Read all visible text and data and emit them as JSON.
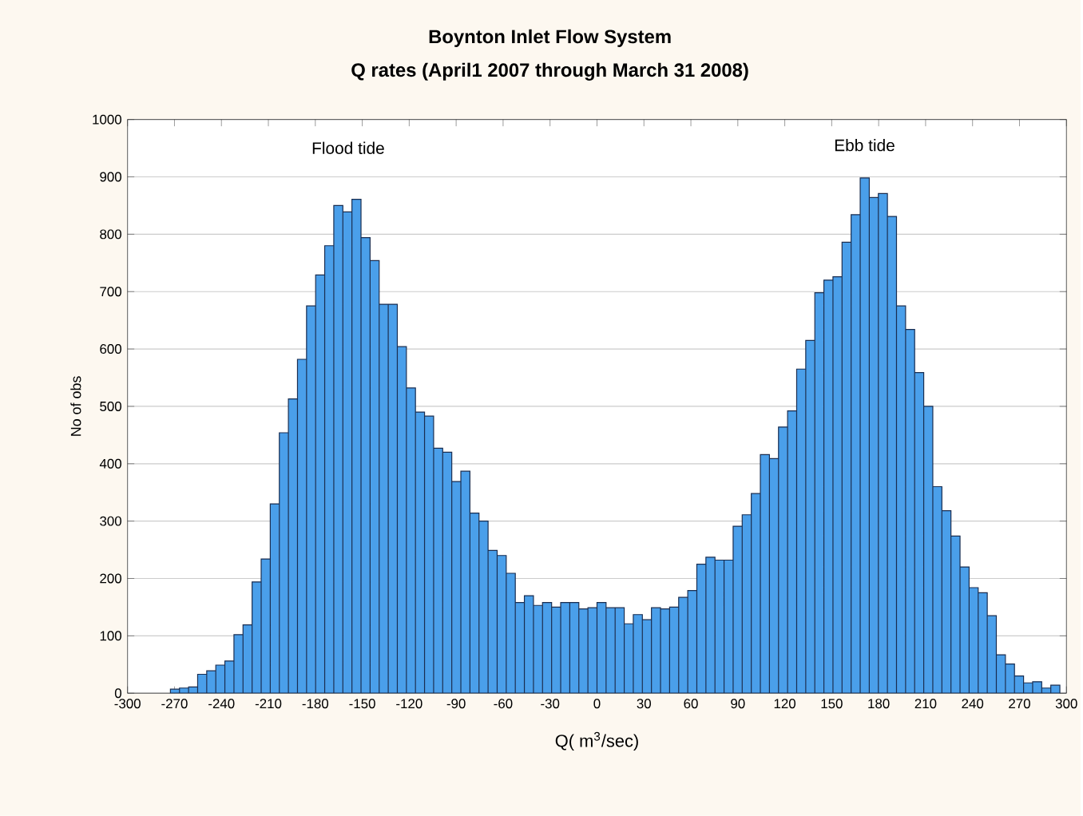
{
  "chart_data": {
    "type": "histogram",
    "title": "Boynton Inlet Flow System",
    "subtitle": "Q rates  (April1 2007 through March 31 2008)",
    "xlabel": "Q( m$^{3}$/sec)",
    "ylabel": "No of obs",
    "color": "#4a9fea",
    "bins": [
      -272.6,
      -266.8,
      -261.0,
      -255.2,
      -249.4,
      -243.6,
      -237.8,
      -232.0,
      -226.2,
      -220.4,
      -214.6,
      -208.8,
      -203.0,
      -197.2,
      -191.4,
      -185.6,
      -179.8,
      -174.0,
      -168.2,
      -162.4,
      -156.6,
      -150.8,
      -145.0,
      -139.2,
      -133.4,
      -127.6,
      -121.8,
      -116.0,
      -110.2,
      -104.4,
      -98.6,
      -92.8,
      -87.0,
      -81.2,
      -75.4,
      -69.6,
      -63.8,
      -58.0,
      -52.2,
      -46.4,
      -40.6,
      -34.8,
      -29.0,
      -23.2,
      -17.4,
      -11.6,
      -5.8,
      0,
      5.8,
      11.6,
      17.4,
      23.2,
      29.0,
      34.8,
      40.6,
      46.4,
      52.2,
      58.0,
      63.8,
      69.6,
      75.4,
      81.2,
      87.0,
      92.8,
      98.6,
      104.4,
      110.2,
      116.0,
      121.8,
      127.6,
      133.4,
      139.2,
      145.0,
      150.8,
      156.6,
      162.4,
      168.2,
      174.0,
      179.8,
      185.6,
      191.4,
      197.2,
      203.0,
      208.8,
      214.6,
      220.4,
      226.2,
      232.0,
      237.8,
      243.6,
      249.4,
      255.2,
      261.0,
      266.8,
      272.6,
      278.4,
      284.2,
      290.0,
      295.8
    ],
    "values": [
      7,
      9,
      11,
      33,
      39,
      49,
      56,
      102,
      119,
      194,
      234,
      330,
      454,
      513,
      582,
      675,
      729,
      780,
      850,
      839,
      861,
      794,
      754,
      678,
      678,
      604,
      532,
      490,
      483,
      427,
      420,
      369,
      387,
      314,
      300,
      249,
      240,
      209,
      158,
      170,
      153,
      158,
      150,
      158,
      158,
      147,
      149,
      158,
      149,
      149,
      121,
      137,
      128,
      149,
      147,
      150,
      167,
      179,
      225,
      237,
      232,
      232,
      291,
      311,
      348,
      416,
      409,
      464,
      492,
      565,
      615,
      698,
      720,
      726,
      786,
      834,
      898,
      864,
      871,
      831,
      675,
      634,
      559,
      500,
      360,
      318,
      274,
      220,
      184,
      175,
      135,
      67,
      51,
      30,
      18,
      20,
      9,
      14
    ],
    "xlim": [
      -300,
      300
    ],
    "ylim": [
      0,
      1000
    ],
    "xticks": [
      -300,
      -270,
      -240,
      -210,
      -180,
      -150,
      -120,
      -90,
      -60,
      -30,
      0,
      30,
      60,
      90,
      120,
      150,
      180,
      210,
      240,
      270,
      300
    ],
    "yticks": [
      0,
      100,
      200,
      300,
      400,
      500,
      600,
      700,
      800,
      900,
      1000
    ],
    "grid": "y",
    "annotations": [
      "Flood tide",
      "Ebb tide"
    ]
  }
}
